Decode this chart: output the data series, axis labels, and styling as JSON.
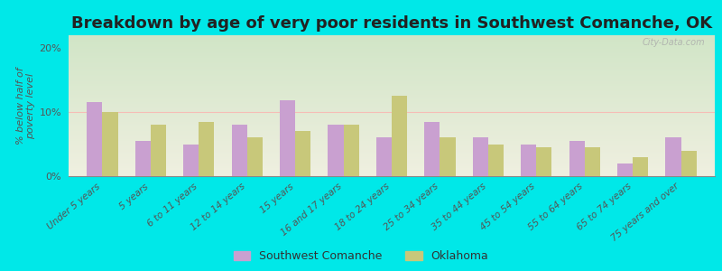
{
  "title": "Breakdown by age of very poor residents in Southwest Comanche, OK",
  "ylabel": "% below half of\npoverty level",
  "categories": [
    "Under 5 years",
    "5 years",
    "6 to 11 years",
    "12 to 14 years",
    "15 years",
    "16 and 17 years",
    "18 to 24 years",
    "25 to 34 years",
    "35 to 44 years",
    "45 to 54 years",
    "55 to 64 years",
    "65 to 74 years",
    "75 years and over"
  ],
  "sw_values": [
    11.5,
    5.5,
    5.0,
    8.0,
    11.8,
    8.0,
    6.0,
    8.5,
    6.0,
    5.0,
    5.5,
    2.0,
    6.0
  ],
  "ok_values": [
    10.0,
    8.0,
    8.5,
    6.0,
    7.0,
    8.0,
    12.5,
    6.0,
    5.0,
    4.5,
    4.5,
    3.0,
    4.0
  ],
  "sw_color": "#c9a0d0",
  "ok_color": "#c8c87a",
  "background_color": "#00e8e8",
  "ylim": [
    0,
    22
  ],
  "yticks": [
    0,
    10,
    20
  ],
  "ytick_labels": [
    "0%",
    "10%",
    "20%"
  ],
  "title_fontsize": 13,
  "legend_sw": "Southwest Comanche",
  "legend_ok": "Oklahoma",
  "watermark": "City-Data.com"
}
